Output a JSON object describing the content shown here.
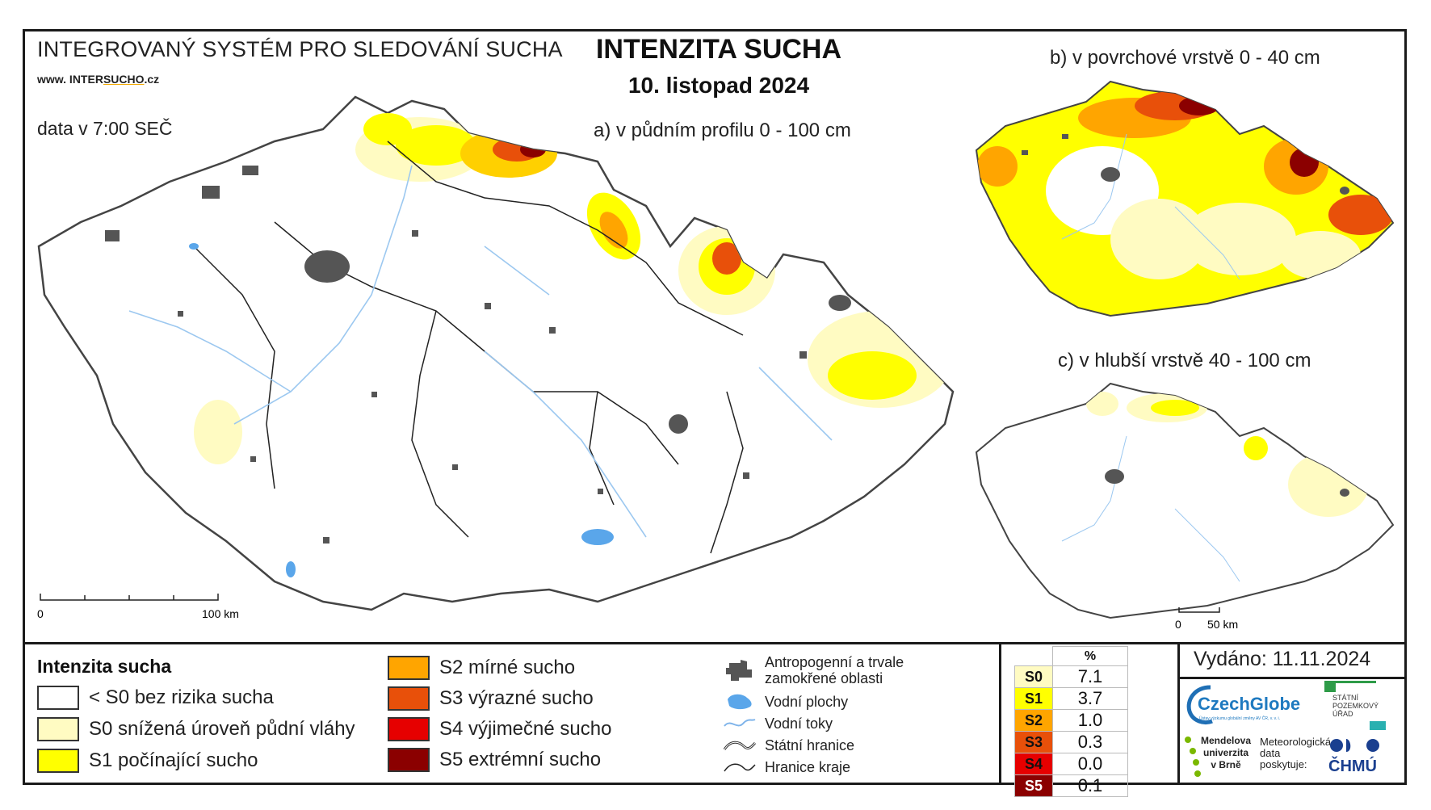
{
  "header": {
    "system_title": "INTEGROVANÝ SYSTÉM PRO SLEDOVÁNÍ SUCHA",
    "website_prefix": "www. INTER",
    "website_accent": "SUCHO",
    "website_suffix": ".cz",
    "data_time": "data v 7:00 SEČ",
    "main_title": "INTENZITA SUCHA",
    "date": "10. listopad 2024"
  },
  "maps": {
    "a_title": "a) v půdním profilu 0 - 100 cm",
    "b_title": "b) v povrchové vrstvě 0 - 40 cm",
    "c_title": "c) v hlubší vrstvě 40 - 100 cm",
    "a_scale": {
      "start": "0",
      "end": "100 km"
    },
    "c_scale": {
      "start": "0",
      "end": "50 km"
    }
  },
  "legend": {
    "title": "Intenzita sucha",
    "classes": [
      {
        "label": "< S0 bez rizika sucha",
        "color": "#ffffff"
      },
      {
        "label": "S0 snížená úroveň půdní vláhy",
        "color": "#fffbc2"
      },
      {
        "label": "S1 počínající sucho",
        "color": "#ffff00"
      },
      {
        "label": "S2 mírné sucho",
        "color": "#ffa500"
      },
      {
        "label": "S3 výrazné sucho",
        "color": "#e8500a"
      },
      {
        "label": "S4 výjimečné sucho",
        "color": "#e60000"
      },
      {
        "label": "S5 extrémní sucho",
        "color": "#8b0000"
      }
    ],
    "symbols": {
      "anthropogenic": "Antropogenní a trvale zamokřené oblasti",
      "water_bodies": "Vodní plochy",
      "streams": "Vodní toky",
      "state_border": "Státní hranice",
      "region_border": "Hranice kraje"
    }
  },
  "stats": {
    "header": "%",
    "rows": [
      {
        "code": "S0",
        "value": "7.1",
        "color": "#fffbc2"
      },
      {
        "code": "S1",
        "value": "3.7",
        "color": "#ffff00"
      },
      {
        "code": "S2",
        "value": "1.0",
        "color": "#ffa500"
      },
      {
        "code": "S3",
        "value": "0.3",
        "color": "#e8500a"
      },
      {
        "code": "S4",
        "value": "0.0",
        "color": "#e60000"
      },
      {
        "code": "S5",
        "value": "0.1",
        "color": "#8b0000"
      }
    ]
  },
  "issued": "Vydáno: 11.11.2024",
  "logos": {
    "czechglobe": "CzechGlobe",
    "czechglobe_sub": "Ústav výzkumu globální změny AV ČR, v. v. i.",
    "spu_line1": "STÁTNÍ",
    "spu_line2": "POZEMKOVÝ",
    "spu_line3": "ÚŘAD",
    "mendel_line1": "Mendelova",
    "mendel_line2": "univerzita",
    "mendel_line3": "v Brně",
    "meteo_line1": "Meteorologická",
    "meteo_line2": "data",
    "meteo_line3": "poskytuje:",
    "chmu": "ČHMÚ"
  }
}
